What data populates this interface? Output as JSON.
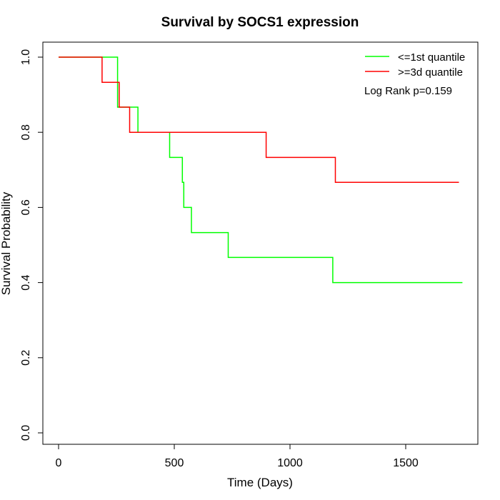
{
  "chart_data": {
    "type": "line",
    "subtype": "step",
    "title": "Survival by SOCS1 expression",
    "xlabel": "Time (Days)",
    "ylabel": "Survival Probability",
    "xlim": [
      0,
      1750
    ],
    "ylim": [
      0,
      1
    ],
    "xticks": [
      0,
      500,
      1000,
      1500
    ],
    "yticks": [
      0.0,
      0.2,
      0.4,
      0.6,
      0.8,
      1.0
    ],
    "xtick_labels": [
      "0",
      "500",
      "1000",
      "1500"
    ],
    "ytick_labels": [
      "0.0",
      "0.2",
      "0.4",
      "0.6",
      "0.8",
      "1.0"
    ],
    "legend_position": "top-right",
    "annotation": "Log Rank p=0.159",
    "grid": false,
    "series": [
      {
        "name": "<=1st quantile",
        "color": "#00ff00",
        "points": [
          [
            0,
            1.0
          ],
          [
            255,
            1.0
          ],
          [
            255,
            0.867
          ],
          [
            343,
            0.867
          ],
          [
            343,
            0.8
          ],
          [
            480,
            0.8
          ],
          [
            480,
            0.733
          ],
          [
            535,
            0.733
          ],
          [
            535,
            0.667
          ],
          [
            541,
            0.667
          ],
          [
            541,
            0.6
          ],
          [
            574,
            0.6
          ],
          [
            574,
            0.533
          ],
          [
            733,
            0.533
          ],
          [
            733,
            0.467
          ],
          [
            1185,
            0.467
          ],
          [
            1185,
            0.4
          ],
          [
            1745,
            0.4
          ]
        ]
      },
      {
        "name": ">=3d quantile",
        "color": "#ff0000",
        "points": [
          [
            0,
            1.0
          ],
          [
            188,
            1.0
          ],
          [
            188,
            0.933
          ],
          [
            262,
            0.933
          ],
          [
            262,
            0.867
          ],
          [
            307,
            0.867
          ],
          [
            307,
            0.8
          ],
          [
            897,
            0.8
          ],
          [
            897,
            0.733
          ],
          [
            1196,
            0.733
          ],
          [
            1196,
            0.667
          ],
          [
            1730,
            0.667
          ]
        ]
      }
    ]
  }
}
